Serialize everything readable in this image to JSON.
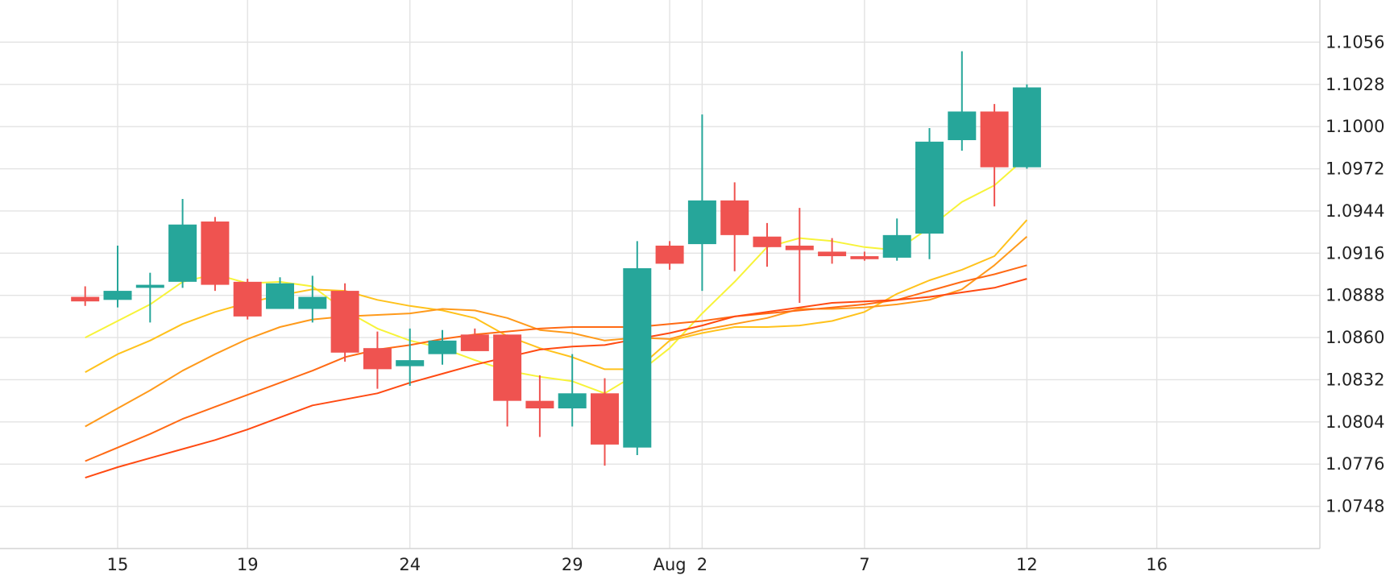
{
  "chart_data": {
    "type": "candlestick",
    "title": "",
    "xlabel": "",
    "ylabel": "",
    "ylim": [
      1.072,
      1.1084
    ],
    "grid": true,
    "legend": "none",
    "y_ticks": [
      "1.0748",
      "1.0776",
      "1.0804",
      "1.0832",
      "1.0860",
      "1.0888",
      "1.0916",
      "1.0944",
      "1.0972",
      "1.1000",
      "1.1028",
      "1.1056"
    ],
    "x_ticks": [
      {
        "label": "15",
        "date": "2023-07-15"
      },
      {
        "label": "19",
        "date": "2023-07-19"
      },
      {
        "label": "24",
        "date": "2023-07-24"
      },
      {
        "label": "29",
        "date": "2023-07-29"
      },
      {
        "label": "Aug",
        "date": "2023-08-01"
      },
      {
        "label": "2",
        "date": "2023-08-02"
      },
      {
        "label": "7",
        "date": "2023-08-07"
      },
      {
        "label": "12",
        "date": "2023-08-12"
      },
      {
        "label": "16",
        "date": "2023-08-16"
      }
    ],
    "candles": [
      {
        "date": "2023-07-14",
        "open": 1.0887,
        "high": 1.0894,
        "low": 1.0881,
        "close": 1.0884
      },
      {
        "date": "2023-07-15",
        "open": 1.0885,
        "high": 1.0921,
        "low": 1.088,
        "close": 1.0891
      },
      {
        "date": "2023-07-16",
        "open": 1.0893,
        "high": 1.0903,
        "low": 1.087,
        "close": 1.0895
      },
      {
        "date": "2023-07-17",
        "open": 1.0897,
        "high": 1.0952,
        "low": 1.0893,
        "close": 1.0935
      },
      {
        "date": "2023-07-18",
        "open": 1.0937,
        "high": 1.094,
        "low": 1.0891,
        "close": 1.0895
      },
      {
        "date": "2023-07-19",
        "open": 1.0897,
        "high": 1.0899,
        "low": 1.0872,
        "close": 1.0874
      },
      {
        "date": "2023-07-20",
        "open": 1.0879,
        "high": 1.09,
        "low": 1.0879,
        "close": 1.0896
      },
      {
        "date": "2023-07-21",
        "open": 1.0879,
        "high": 1.0901,
        "low": 1.087,
        "close": 1.0887
      },
      {
        "date": "2023-07-22",
        "open": 1.0891,
        "high": 1.0896,
        "low": 1.0844,
        "close": 1.085
      },
      {
        "date": "2023-07-23",
        "open": 1.0853,
        "high": 1.0864,
        "low": 1.0826,
        "close": 1.0839
      },
      {
        "date": "2023-07-24",
        "open": 1.0841,
        "high": 1.0866,
        "low": 1.0828,
        "close": 1.0845
      },
      {
        "date": "2023-07-25",
        "open": 1.0849,
        "high": 1.0865,
        "low": 1.0842,
        "close": 1.0858
      },
      {
        "date": "2023-07-26",
        "open": 1.0862,
        "high": 1.0866,
        "low": 1.0851,
        "close": 1.0851
      },
      {
        "date": "2023-07-27",
        "open": 1.0862,
        "high": 1.0862,
        "low": 1.0801,
        "close": 1.0818
      },
      {
        "date": "2023-07-28",
        "open": 1.0818,
        "high": 1.0835,
        "low": 1.0794,
        "close": 1.0813
      },
      {
        "date": "2023-07-29",
        "open": 1.0813,
        "high": 1.0849,
        "low": 1.0801,
        "close": 1.0823
      },
      {
        "date": "2023-07-30",
        "open": 1.0823,
        "high": 1.0833,
        "low": 1.0775,
        "close": 1.0789
      },
      {
        "date": "2023-07-31",
        "open": 1.0787,
        "high": 1.0924,
        "low": 1.0782,
        "close": 1.0906
      },
      {
        "date": "2023-08-01",
        "open": 1.0921,
        "high": 1.0924,
        "low": 1.0905,
        "close": 1.0909
      },
      {
        "date": "2023-08-02",
        "open": 1.0922,
        "high": 1.1008,
        "low": 1.0891,
        "close": 1.0951
      },
      {
        "date": "2023-08-03",
        "open": 1.0951,
        "high": 1.0963,
        "low": 1.0904,
        "close": 1.0928
      },
      {
        "date": "2023-08-04",
        "open": 1.0927,
        "high": 1.0936,
        "low": 1.0907,
        "close": 1.092
      },
      {
        "date": "2023-08-05",
        "open": 1.0921,
        "high": 1.0946,
        "low": 1.0883,
        "close": 1.0918
      },
      {
        "date": "2023-08-06",
        "open": 1.0917,
        "high": 1.0926,
        "low": 1.0909,
        "close": 1.0914
      },
      {
        "date": "2023-08-07",
        "open": 1.0914,
        "high": 1.0917,
        "low": 1.0911,
        "close": 1.0912
      },
      {
        "date": "2023-08-08",
        "open": 1.0913,
        "high": 1.0939,
        "low": 1.0911,
        "close": 1.0928
      },
      {
        "date": "2023-08-09",
        "open": 1.0929,
        "high": 1.0999,
        "low": 1.0912,
        "close": 1.099
      },
      {
        "date": "2023-08-10",
        "open": 1.0991,
        "high": 1.105,
        "low": 1.0984,
        "close": 1.101
      },
      {
        "date": "2023-08-11",
        "open": 1.101,
        "high": 1.1015,
        "low": 1.0947,
        "close": 1.0973
      },
      {
        "date": "2023-08-12",
        "open": 1.0973,
        "high": 1.1028,
        "low": 1.0972,
        "close": 1.1026
      }
    ],
    "series": [
      {
        "color": "#f7f339",
        "x": [
          "2023-07-14",
          "2023-07-15",
          "2023-07-16",
          "2023-07-17",
          "2023-07-18",
          "2023-07-19",
          "2023-07-20",
          "2023-07-21",
          "2023-07-22",
          "2023-07-23",
          "2023-07-24",
          "2023-07-25",
          "2023-07-26",
          "2023-07-27",
          "2023-07-28",
          "2023-07-29",
          "2023-07-30",
          "2023-07-31",
          "2023-08-01",
          "2023-08-02",
          "2023-08-03",
          "2023-08-04",
          "2023-08-05",
          "2023-08-06",
          "2023-08-07",
          "2023-08-08",
          "2023-08-09",
          "2023-08-10",
          "2023-08-11",
          "2023-08-12"
        ],
        "values": [
          1.086,
          1.0871,
          1.0882,
          1.0897,
          1.0902,
          1.0896,
          1.0897,
          1.0894,
          1.0878,
          1.0866,
          1.0858,
          1.0853,
          1.0845,
          1.0838,
          1.0834,
          1.0831,
          1.0823,
          1.0836,
          1.0853,
          1.0876,
          1.0897,
          1.092,
          1.0926,
          1.0924,
          1.092,
          1.0918,
          1.0933,
          1.095,
          1.0961,
          1.098
        ]
      },
      {
        "color": "#ffc21c",
        "x": [
          "2023-07-14",
          "2023-07-15",
          "2023-07-16",
          "2023-07-17",
          "2023-07-18",
          "2023-07-19",
          "2023-07-20",
          "2023-07-21",
          "2023-07-22",
          "2023-07-23",
          "2023-07-24",
          "2023-07-25",
          "2023-07-26",
          "2023-07-27",
          "2023-07-28",
          "2023-07-29",
          "2023-07-30",
          "2023-07-31",
          "2023-08-01",
          "2023-08-02",
          "2023-08-03",
          "2023-08-04",
          "2023-08-05",
          "2023-08-06",
          "2023-08-07",
          "2023-08-08",
          "2023-08-09",
          "2023-08-10",
          "2023-08-11",
          "2023-08-12"
        ],
        "values": [
          1.0837,
          1.0849,
          1.0858,
          1.0869,
          1.0877,
          1.0883,
          1.0888,
          1.0892,
          1.0891,
          1.0885,
          1.0881,
          1.0878,
          1.0873,
          1.0861,
          1.0853,
          1.0847,
          1.0839,
          1.0839,
          1.0858,
          1.0863,
          1.0867,
          1.0867,
          1.0868,
          1.0871,
          1.0877,
          1.0889,
          1.0898,
          1.0905,
          1.0914,
          1.0938
        ]
      },
      {
        "color": "#ff9a1b",
        "x": [
          "2023-07-14",
          "2023-07-15",
          "2023-07-16",
          "2023-07-17",
          "2023-07-18",
          "2023-07-19",
          "2023-07-20",
          "2023-07-21",
          "2023-07-22",
          "2023-07-23",
          "2023-07-24",
          "2023-07-25",
          "2023-07-26",
          "2023-07-27",
          "2023-07-28",
          "2023-07-29",
          "2023-07-30",
          "2023-07-31",
          "2023-08-01",
          "2023-08-02",
          "2023-08-03",
          "2023-08-04",
          "2023-08-05",
          "2023-08-06",
          "2023-08-07",
          "2023-08-08",
          "2023-08-09",
          "2023-08-10",
          "2023-08-11",
          "2023-08-12"
        ],
        "values": [
          1.0801,
          1.0813,
          1.0825,
          1.0838,
          1.0849,
          1.0859,
          1.0867,
          1.0872,
          1.0874,
          1.0875,
          1.0876,
          1.0879,
          1.0878,
          1.0873,
          1.0865,
          1.0863,
          1.0858,
          1.086,
          1.0859,
          1.0865,
          1.0869,
          1.0873,
          1.0879,
          1.0879,
          1.088,
          1.0882,
          1.0885,
          1.0892,
          1.0908,
          1.0927
        ]
      },
      {
        "color": "#ff6a14",
        "x": [
          "2023-07-14",
          "2023-07-15",
          "2023-07-16",
          "2023-07-17",
          "2023-07-18",
          "2023-07-19",
          "2023-07-20",
          "2023-07-21",
          "2023-07-22",
          "2023-07-23",
          "2023-07-24",
          "2023-07-25",
          "2023-07-26",
          "2023-07-27",
          "2023-07-28",
          "2023-07-29",
          "2023-07-30",
          "2023-07-31",
          "2023-08-01",
          "2023-08-02",
          "2023-08-03",
          "2023-08-04",
          "2023-08-05",
          "2023-08-06",
          "2023-08-07",
          "2023-08-08",
          "2023-08-09",
          "2023-08-10",
          "2023-08-11",
          "2023-08-12"
        ],
        "values": [
          1.0778,
          1.0787,
          1.0796,
          1.0806,
          1.0814,
          1.0822,
          1.083,
          1.0838,
          1.0847,
          1.0852,
          1.0855,
          1.0859,
          1.0862,
          1.0864,
          1.0866,
          1.0867,
          1.0867,
          1.0867,
          1.0869,
          1.0871,
          1.0874,
          1.0876,
          1.0878,
          1.088,
          1.0882,
          1.0885,
          1.0891,
          1.0897,
          1.0902,
          1.0908
        ]
      },
      {
        "color": "#ff4a12",
        "x": [
          "2023-07-14",
          "2023-07-15",
          "2023-07-16",
          "2023-07-17",
          "2023-07-18",
          "2023-07-19",
          "2023-07-20",
          "2023-07-21",
          "2023-07-22",
          "2023-07-23",
          "2023-07-24",
          "2023-07-25",
          "2023-07-26",
          "2023-07-27",
          "2023-07-28",
          "2023-07-29",
          "2023-07-30",
          "2023-07-31",
          "2023-08-01",
          "2023-08-02",
          "2023-08-03",
          "2023-08-04",
          "2023-08-05",
          "2023-08-06",
          "2023-08-07",
          "2023-08-08",
          "2023-08-09",
          "2023-08-10",
          "2023-08-11",
          "2023-08-12"
        ],
        "values": [
          1.0767,
          1.0774,
          1.078,
          1.0786,
          1.0792,
          1.0799,
          1.0807,
          1.0815,
          1.0819,
          1.0823,
          1.083,
          1.0836,
          1.0842,
          1.0847,
          1.0852,
          1.0854,
          1.0855,
          1.0859,
          1.0863,
          1.0868,
          1.0874,
          1.0877,
          1.088,
          1.0883,
          1.0884,
          1.0885,
          1.0887,
          1.089,
          1.0893,
          1.0899
        ]
      }
    ],
    "colors": {
      "up": "#26a69a",
      "down": "#ef5350",
      "grid": "#e3e3e3",
      "frame": "#d4d4d4",
      "text": "#222222"
    }
  }
}
